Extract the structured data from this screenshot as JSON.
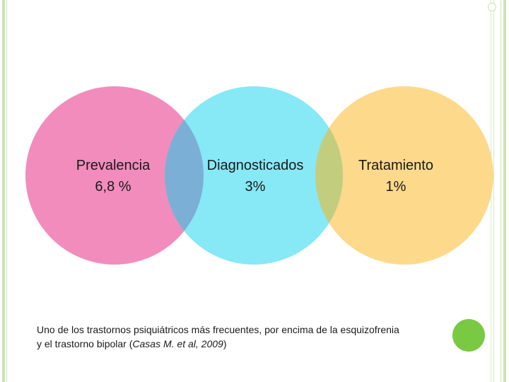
{
  "circles": [
    {
      "title": "Prevalencia",
      "value": "6,8 %",
      "color": "#f28cbd"
    },
    {
      "title": "Diagnosticados",
      "value": "3%",
      "color": "#87e8f6"
    },
    {
      "title": "Tratamiento",
      "value": "1%",
      "color": "#fdd98b"
    }
  ],
  "overlap_colors": [
    "#7cafd5",
    "#c3cd7e"
  ],
  "caption": {
    "text_before": "Uno de los trastornos psiquiátricos más frecuentes, por encima de la esquizofrenia y el trastorno bipolar (",
    "citation": "Casas M. et al, 2009",
    "text_after": ")"
  },
  "decor": {
    "accent_green": "#7ac943",
    "border_green": "#c8e6b4"
  }
}
